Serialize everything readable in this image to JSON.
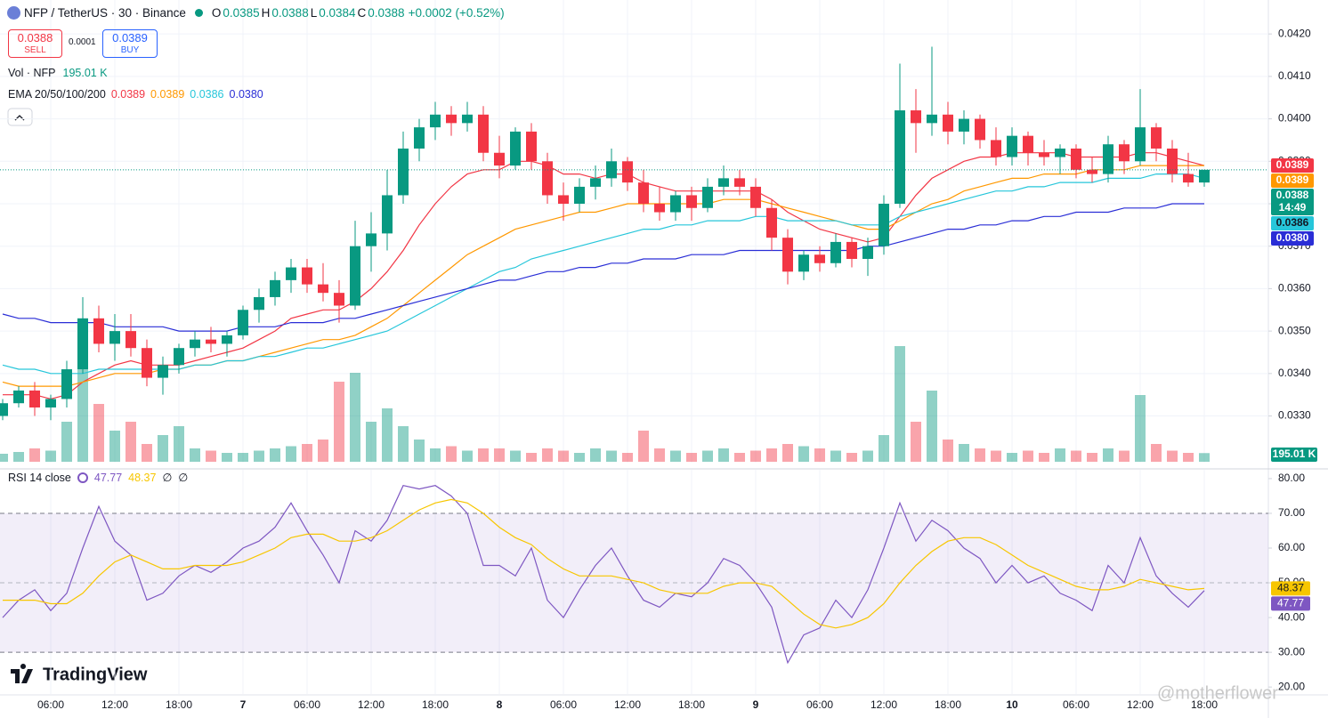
{
  "header": {
    "symbol": "NFP / TetherUS · 30 · Binance",
    "ohlc": [
      {
        "label": "O",
        "value": "0.0385"
      },
      {
        "label": "H",
        "value": "0.0388"
      },
      {
        "label": "L",
        "value": "0.0384"
      },
      {
        "label": "C",
        "value": "0.0388"
      }
    ],
    "change": "+0.0002 (+0.52%)"
  },
  "trade": {
    "sell_price": "0.0388",
    "sell": "SELL",
    "spread": "0.0001",
    "buy_price": "0.0389",
    "buy": "BUY"
  },
  "brand": "TradingView",
  "watermark": "@motherflower",
  "chart_data": [
    {
      "type": "candlestick",
      "volume_title": "Vol · NFP",
      "volume_last_label": "195.01 K",
      "ema_title": "EMA 20/50/100/200",
      "countdown": "14:49",
      "up_color": "#089981",
      "down_color": "#f23645",
      "categories": [
        null,
        null,
        null,
        "06:00",
        null,
        null,
        null,
        "12:00",
        null,
        null,
        null,
        "18:00",
        null,
        null,
        null,
        "7",
        null,
        null,
        null,
        "06:00",
        null,
        null,
        null,
        "12:00",
        null,
        null,
        null,
        "18:00",
        null,
        null,
        null,
        "8",
        null,
        null,
        null,
        "06:00",
        null,
        null,
        null,
        "12:00",
        null,
        null,
        null,
        "18:00",
        null,
        null,
        null,
        "9",
        null,
        null,
        null,
        "06:00",
        null,
        null,
        null,
        "12:00",
        null,
        null,
        null,
        "18:00",
        null,
        null,
        null,
        "10",
        null,
        null,
        null,
        "06:00",
        null,
        null,
        null,
        "12:00",
        null,
        null,
        null,
        "18:00"
      ],
      "open": [
        0.033,
        0.0333,
        0.0336,
        0.0332,
        0.0334,
        0.0341,
        0.0353,
        0.0347,
        0.035,
        0.0346,
        0.0339,
        0.0342,
        0.0346,
        0.0348,
        0.0347,
        0.0349,
        0.0355,
        0.0358,
        0.0362,
        0.0365,
        0.0361,
        0.0359,
        0.0356,
        0.037,
        0.0373,
        0.0382,
        0.0393,
        0.0398,
        0.0401,
        0.0399,
        0.0401,
        0.0392,
        0.0389,
        0.0397,
        0.039,
        0.0382,
        0.038,
        0.0384,
        0.0386,
        0.039,
        0.0385,
        0.038,
        0.0378,
        0.0382,
        0.0379,
        0.0384,
        0.0386,
        0.0384,
        0.0379,
        0.0372,
        0.0364,
        0.0368,
        0.0366,
        0.0371,
        0.0367,
        0.037,
        0.038,
        0.0402,
        0.0399,
        0.0401,
        0.0397,
        0.04,
        0.0395,
        0.0391,
        0.0396,
        0.0392,
        0.0391,
        0.0393,
        0.0388,
        0.0387,
        0.0394,
        0.039,
        0.0398,
        0.0393,
        0.0387,
        0.0385
      ],
      "high": [
        0.0334,
        0.0337,
        0.0338,
        0.0335,
        0.0343,
        0.0358,
        0.0356,
        0.0354,
        0.0354,
        0.0348,
        0.0344,
        0.0347,
        0.035,
        0.0351,
        0.035,
        0.0356,
        0.036,
        0.0364,
        0.0367,
        0.0367,
        0.0366,
        0.0362,
        0.0376,
        0.0378,
        0.0388,
        0.0397,
        0.04,
        0.0404,
        0.0403,
        0.0404,
        0.0403,
        0.0396,
        0.0398,
        0.0399,
        0.0392,
        0.0385,
        0.0386,
        0.0389,
        0.0393,
        0.0391,
        0.0388,
        0.0384,
        0.0383,
        0.0384,
        0.0386,
        0.0389,
        0.0388,
        0.0386,
        0.0381,
        0.0374,
        0.0369,
        0.037,
        0.0373,
        0.0372,
        0.0372,
        0.0382,
        0.0413,
        0.0407,
        0.0417,
        0.0404,
        0.0402,
        0.0401,
        0.0398,
        0.0398,
        0.0397,
        0.0395,
        0.0394,
        0.0394,
        0.0391,
        0.0396,
        0.0395,
        0.0407,
        0.0399,
        0.0395,
        0.0392,
        0.0388
      ],
      "low": [
        0.0329,
        0.0332,
        0.033,
        0.0329,
        0.0332,
        0.034,
        0.0345,
        0.0343,
        0.0344,
        0.0337,
        0.0335,
        0.034,
        0.0344,
        0.0345,
        0.0344,
        0.0348,
        0.0352,
        0.0356,
        0.0359,
        0.0359,
        0.0357,
        0.0352,
        0.0355,
        0.0364,
        0.0369,
        0.038,
        0.039,
        0.0395,
        0.0396,
        0.0397,
        0.039,
        0.0386,
        0.0388,
        0.0388,
        0.038,
        0.0376,
        0.0378,
        0.0381,
        0.0384,
        0.0383,
        0.0378,
        0.0376,
        0.0376,
        0.0376,
        0.0378,
        0.0382,
        0.0382,
        0.0377,
        0.0369,
        0.0361,
        0.0362,
        0.0364,
        0.0365,
        0.0365,
        0.0363,
        0.0368,
        0.0379,
        0.0392,
        0.0396,
        0.0394,
        0.0394,
        0.0393,
        0.0389,
        0.0389,
        0.0389,
        0.0389,
        0.0387,
        0.0386,
        0.0385,
        0.0385,
        0.0387,
        0.0389,
        0.039,
        0.0385,
        0.0384,
        0.0384
      ],
      "close": [
        0.0333,
        0.0336,
        0.0332,
        0.0334,
        0.0341,
        0.0353,
        0.0347,
        0.035,
        0.0346,
        0.0339,
        0.0342,
        0.0346,
        0.0348,
        0.0347,
        0.0349,
        0.0355,
        0.0358,
        0.0362,
        0.0365,
        0.0361,
        0.0359,
        0.0356,
        0.037,
        0.0373,
        0.0382,
        0.0393,
        0.0398,
        0.0401,
        0.0399,
        0.0401,
        0.0392,
        0.0389,
        0.0397,
        0.039,
        0.0382,
        0.038,
        0.0384,
        0.0386,
        0.039,
        0.0385,
        0.038,
        0.0378,
        0.0382,
        0.0379,
        0.0384,
        0.0386,
        0.0384,
        0.0379,
        0.0372,
        0.0364,
        0.0368,
        0.0366,
        0.0371,
        0.0367,
        0.037,
        0.038,
        0.0402,
        0.0399,
        0.0401,
        0.0397,
        0.04,
        0.0395,
        0.0391,
        0.0396,
        0.0392,
        0.0391,
        0.0393,
        0.0388,
        0.0387,
        0.0394,
        0.039,
        0.0398,
        0.0393,
        0.0387,
        0.0385,
        0.0388
      ],
      "volume": [
        180000,
        220000,
        300000,
        250000,
        900000,
        2200000,
        1300000,
        700000,
        900000,
        400000,
        600000,
        800000,
        300000,
        250000,
        200000,
        200000,
        250000,
        300000,
        350000,
        400000,
        500000,
        1800000,
        2000000,
        900000,
        1200000,
        800000,
        500000,
        300000,
        350000,
        250000,
        300000,
        300000,
        250000,
        200000,
        300000,
        250000,
        200000,
        300000,
        250000,
        200000,
        700000,
        300000,
        250000,
        200000,
        250000,
        300000,
        200000,
        250000,
        300000,
        400000,
        350000,
        300000,
        250000,
        200000,
        250000,
        600000,
        2600000,
        900000,
        1600000,
        500000,
        400000,
        300000,
        250000,
        200000,
        250000,
        200000,
        300000,
        250000,
        200000,
        300000,
        250000,
        1500000,
        400000,
        250000,
        200000,
        195010
      ],
      "volume_lim": [
        0,
        3200000
      ],
      "lines": [
        {
          "color": "#f23645",
          "last_label": "0.0389",
          "values": [
            0.0335,
            0.0335,
            0.0335,
            0.0334,
            0.0335,
            0.0338,
            0.034,
            0.0342,
            0.0343,
            0.0342,
            0.0342,
            0.0342,
            0.0343,
            0.0344,
            0.0345,
            0.0346,
            0.0348,
            0.035,
            0.0353,
            0.0354,
            0.0355,
            0.0355,
            0.0357,
            0.036,
            0.0364,
            0.0369,
            0.0375,
            0.038,
            0.0384,
            0.0387,
            0.0388,
            0.0388,
            0.039,
            0.039,
            0.0389,
            0.0387,
            0.0387,
            0.0386,
            0.0387,
            0.0387,
            0.0385,
            0.0384,
            0.0383,
            0.0383,
            0.0383,
            0.0383,
            0.0383,
            0.0383,
            0.0381,
            0.0378,
            0.0376,
            0.0374,
            0.0373,
            0.0372,
            0.0371,
            0.0372,
            0.0377,
            0.0382,
            0.0386,
            0.0388,
            0.039,
            0.0391,
            0.0391,
            0.0392,
            0.0392,
            0.0392,
            0.0392,
            0.0391,
            0.0391,
            0.0391,
            0.0391,
            0.0392,
            0.0392,
            0.0391,
            0.039,
            0.0389
          ]
        },
        {
          "color": "#ff9800",
          "last_label": "0.0389",
          "values": [
            0.0338,
            0.0337,
            0.0337,
            0.0337,
            0.0337,
            0.0338,
            0.0339,
            0.034,
            0.034,
            0.034,
            0.0341,
            0.0341,
            0.0342,
            0.0342,
            0.0343,
            0.0343,
            0.0344,
            0.0345,
            0.0346,
            0.0347,
            0.0348,
            0.0348,
            0.0349,
            0.0351,
            0.0353,
            0.0356,
            0.0359,
            0.0362,
            0.0365,
            0.0368,
            0.037,
            0.0372,
            0.0374,
            0.0375,
            0.0376,
            0.0377,
            0.0378,
            0.0378,
            0.0379,
            0.038,
            0.038,
            0.038,
            0.038,
            0.038,
            0.038,
            0.0381,
            0.0381,
            0.0381,
            0.038,
            0.0379,
            0.0378,
            0.0377,
            0.0376,
            0.0375,
            0.0374,
            0.0374,
            0.0376,
            0.0378,
            0.038,
            0.0381,
            0.0383,
            0.0384,
            0.0385,
            0.0386,
            0.0386,
            0.0387,
            0.0387,
            0.0387,
            0.0388,
            0.0388,
            0.0388,
            0.0389,
            0.0389,
            0.0389,
            0.0389,
            0.0389
          ]
        },
        {
          "color": "#26c6da",
          "last_label": "0.0386",
          "values": [
            0.0342,
            0.0341,
            0.0341,
            0.034,
            0.034,
            0.034,
            0.0341,
            0.0341,
            0.0341,
            0.0341,
            0.0341,
            0.0341,
            0.0342,
            0.0342,
            0.0343,
            0.0343,
            0.0344,
            0.0344,
            0.0345,
            0.0346,
            0.0346,
            0.0347,
            0.0348,
            0.0349,
            0.035,
            0.0352,
            0.0354,
            0.0356,
            0.0358,
            0.036,
            0.0362,
            0.0364,
            0.0365,
            0.0367,
            0.0368,
            0.0369,
            0.037,
            0.0371,
            0.0372,
            0.0373,
            0.0374,
            0.0374,
            0.0375,
            0.0375,
            0.0376,
            0.0376,
            0.0376,
            0.0377,
            0.0377,
            0.0376,
            0.0376,
            0.0376,
            0.0376,
            0.0375,
            0.0375,
            0.0375,
            0.0377,
            0.0378,
            0.0379,
            0.038,
            0.0381,
            0.0382,
            0.0383,
            0.0383,
            0.0384,
            0.0384,
            0.0385,
            0.0385,
            0.0385,
            0.0386,
            0.0386,
            0.0386,
            0.0387,
            0.0387,
            0.0387,
            0.0386
          ]
        },
        {
          "color": "#2a2ed6",
          "last_label": "0.0380",
          "values": [
            0.0354,
            0.0353,
            0.0353,
            0.0352,
            0.0352,
            0.0352,
            0.0352,
            0.0351,
            0.0351,
            0.0351,
            0.0351,
            0.035,
            0.035,
            0.035,
            0.035,
            0.0351,
            0.0351,
            0.0351,
            0.0352,
            0.0352,
            0.0352,
            0.0353,
            0.0353,
            0.0354,
            0.0355,
            0.0356,
            0.0357,
            0.0358,
            0.0359,
            0.036,
            0.0361,
            0.0362,
            0.0362,
            0.0363,
            0.0364,
            0.0364,
            0.0365,
            0.0365,
            0.0366,
            0.0366,
            0.0367,
            0.0367,
            0.0367,
            0.0368,
            0.0368,
            0.0368,
            0.0369,
            0.0369,
            0.0369,
            0.0369,
            0.0369,
            0.0369,
            0.0369,
            0.0369,
            0.037,
            0.037,
            0.0371,
            0.0372,
            0.0373,
            0.0374,
            0.0374,
            0.0375,
            0.0375,
            0.0376,
            0.0376,
            0.0377,
            0.0377,
            0.0378,
            0.0378,
            0.0378,
            0.0379,
            0.0379,
            0.0379,
            0.038,
            0.038,
            0.038
          ]
        }
      ],
      "ylim": [
        0.0319,
        0.0428
      ],
      "yticks": [
        {
          "value": 0.042,
          "label": "0.0420"
        },
        {
          "value": 0.041,
          "label": "0.0410"
        },
        {
          "value": 0.04,
          "label": "0.0400"
        },
        {
          "value": 0.039,
          "label": "0.0390"
        },
        {
          "value": 0.038,
          "label": "0.0380"
        },
        {
          "value": 0.037,
          "label": "0.0370"
        },
        {
          "value": 0.036,
          "label": "0.0360"
        },
        {
          "value": 0.035,
          "label": "0.0350"
        },
        {
          "value": 0.034,
          "label": "0.0340"
        },
        {
          "value": 0.033,
          "label": "0.0330"
        }
      ],
      "grid": true
    },
    {
      "type": "line",
      "title": "RSI 14 close",
      "extras": [
        "∅",
        "∅"
      ],
      "series": [
        {
          "color": "#7e57c2",
          "values": [
            40,
            45,
            48,
            42,
            47,
            60,
            72,
            62,
            58,
            45,
            47,
            52,
            55,
            53,
            56,
            60,
            62,
            66,
            73,
            65,
            58,
            50,
            65,
            62,
            68,
            78,
            77,
            78,
            75,
            70,
            55,
            55,
            52,
            60,
            45,
            40,
            48,
            55,
            60,
            52,
            45,
            43,
            47,
            46,
            50,
            57,
            55,
            50,
            43,
            27,
            35,
            37,
            45,
            40,
            48,
            60,
            73,
            62,
            68,
            65,
            60,
            57,
            50,
            55,
            50,
            52,
            47,
            45,
            42,
            55,
            50,
            63,
            52,
            47,
            43,
            47.77
          ]
        },
        {
          "color": "#f7c600",
          "values": [
            45,
            45,
            45,
            44,
            44,
            47,
            52,
            56,
            58,
            56,
            54,
            54,
            55,
            55,
            55,
            56,
            58,
            60,
            63,
            64,
            64,
            62,
            62,
            63,
            65,
            68,
            71,
            73,
            74,
            73,
            70,
            66,
            63,
            61,
            57,
            54,
            52,
            52,
            52,
            51,
            50,
            48,
            47,
            47,
            47,
            49,
            50,
            50,
            49,
            45,
            41,
            38,
            37,
            38,
            40,
            44,
            50,
            55,
            59,
            62,
            63,
            63,
            61,
            58,
            55,
            53,
            51,
            49,
            48,
            48,
            49,
            51,
            50,
            49,
            48,
            48.37
          ]
        }
      ],
      "band": [
        30,
        70
      ],
      "midline": 50,
      "ylim": [
        18,
        82.8
      ],
      "yticks": [
        {
          "value": 80,
          "label": "80.00"
        },
        {
          "value": 70,
          "label": "70.00"
        },
        {
          "value": 60,
          "label": "60.00"
        },
        {
          "value": 50,
          "label": "50.00"
        },
        {
          "value": 40,
          "label": "40.00"
        },
        {
          "value": 30,
          "label": "30.00"
        },
        {
          "value": 20,
          "label": "20.00"
        }
      ]
    }
  ]
}
